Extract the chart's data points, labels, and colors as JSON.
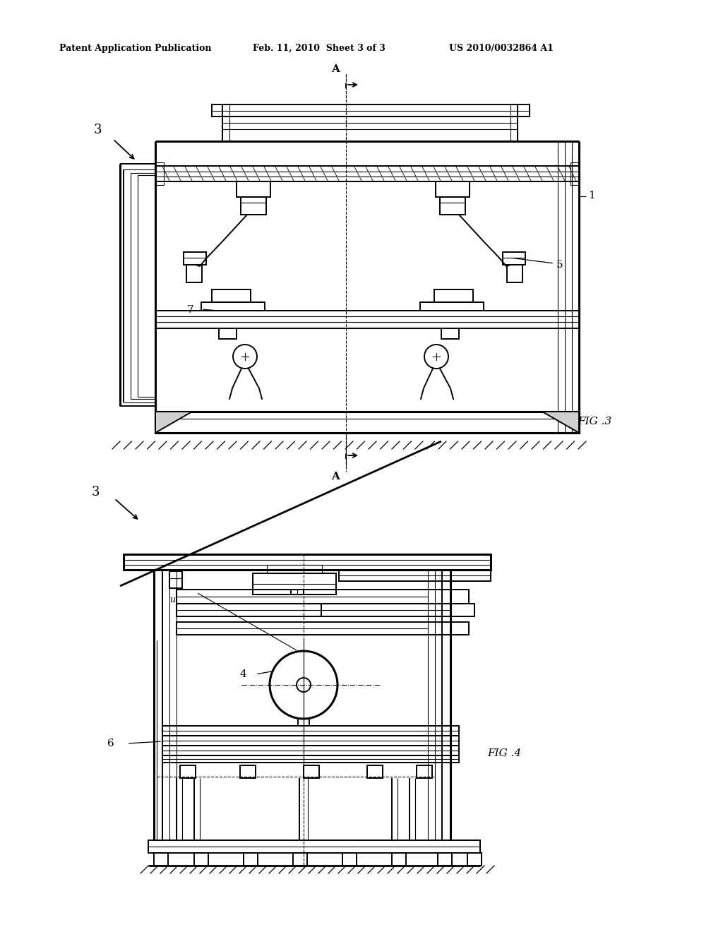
{
  "background_color": "#ffffff",
  "header_text": "Patent Application Publication",
  "header_date": "Feb. 11, 2010  Sheet 3 of 3",
  "header_patent": "US 2010/0032864 A1",
  "fig3_label": "FIG .3",
  "fig4_label": "FIG .4",
  "label_3": "3",
  "label_1": "1",
  "label_4": "4",
  "label_5": "5",
  "label_6": "6",
  "label_7": "7",
  "label_A": "A",
  "label_u": "u"
}
